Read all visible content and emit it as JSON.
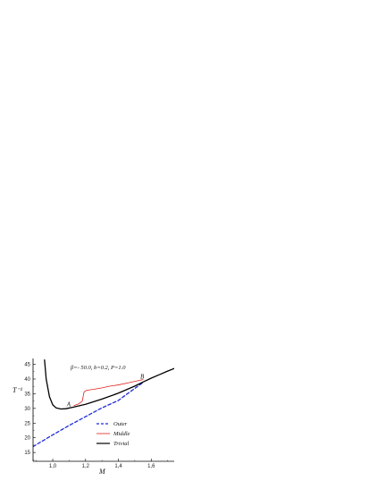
{
  "chart_data": {
    "type": "line",
    "annotation": "β=- 50.0,  b=0.2,  P=1.0",
    "xlabel": "M",
    "ylabel": "T⁻¹",
    "xlim": [
      0.88,
      1.74
    ],
    "ylim": [
      12,
      47
    ],
    "xticks": [
      {
        "value": 1.0,
        "label": "1,0"
      },
      {
        "value": 1.2,
        "label": "1,2"
      },
      {
        "value": 1.4,
        "label": "1,4"
      },
      {
        "value": 1.6,
        "label": "1,6"
      }
    ],
    "yticks": [
      {
        "value": 15,
        "label": "15"
      },
      {
        "value": 20,
        "label": "20"
      },
      {
        "value": 25,
        "label": "25"
      },
      {
        "value": 30,
        "label": "30"
      },
      {
        "value": 35,
        "label": "35"
      },
      {
        "value": 40,
        "label": "40"
      },
      {
        "value": 45,
        "label": "45"
      }
    ],
    "grid": false,
    "legend_position": "bottom-center",
    "points": [
      {
        "label": "A",
        "x": 1.13,
        "y": 31.0
      },
      {
        "label": "B",
        "x": 1.55,
        "y": 39.0
      }
    ],
    "series": [
      {
        "name": "Outer",
        "color": "#1f2bd6",
        "style": "dashed",
        "x": [
          0.88,
          1.0,
          1.1,
          1.2,
          1.3,
          1.4,
          1.45,
          1.5,
          1.55
        ],
        "y": [
          17.0,
          21.0,
          24.2,
          27.2,
          30.2,
          32.7,
          34.8,
          36.8,
          38.8
        ]
      },
      {
        "name": "Middle",
        "color": "#e0201b",
        "style": "solid",
        "x": [
          1.13,
          1.16,
          1.18,
          1.19,
          1.2,
          1.21,
          1.25,
          1.3,
          1.35,
          1.4,
          1.45,
          1.5,
          1.55
        ],
        "y": [
          31.0,
          31.6,
          32.5,
          35.5,
          36.0,
          36.2,
          36.5,
          37.0,
          37.6,
          38.0,
          38.6,
          39.2,
          39.8
        ]
      },
      {
        "name": "Trivial",
        "color": "#000000",
        "style": "solid",
        "x": [
          0.95,
          0.96,
          0.98,
          1.0,
          1.02,
          1.05,
          1.08,
          1.13,
          1.2,
          1.3,
          1.4,
          1.5,
          1.55,
          1.6,
          1.65,
          1.7,
          1.74
        ],
        "y": [
          46.5,
          40.0,
          34.0,
          31.2,
          30.2,
          29.8,
          29.9,
          30.5,
          31.4,
          33.2,
          35.2,
          37.6,
          39.0,
          40.3,
          41.5,
          42.7,
          43.6
        ]
      }
    ]
  }
}
